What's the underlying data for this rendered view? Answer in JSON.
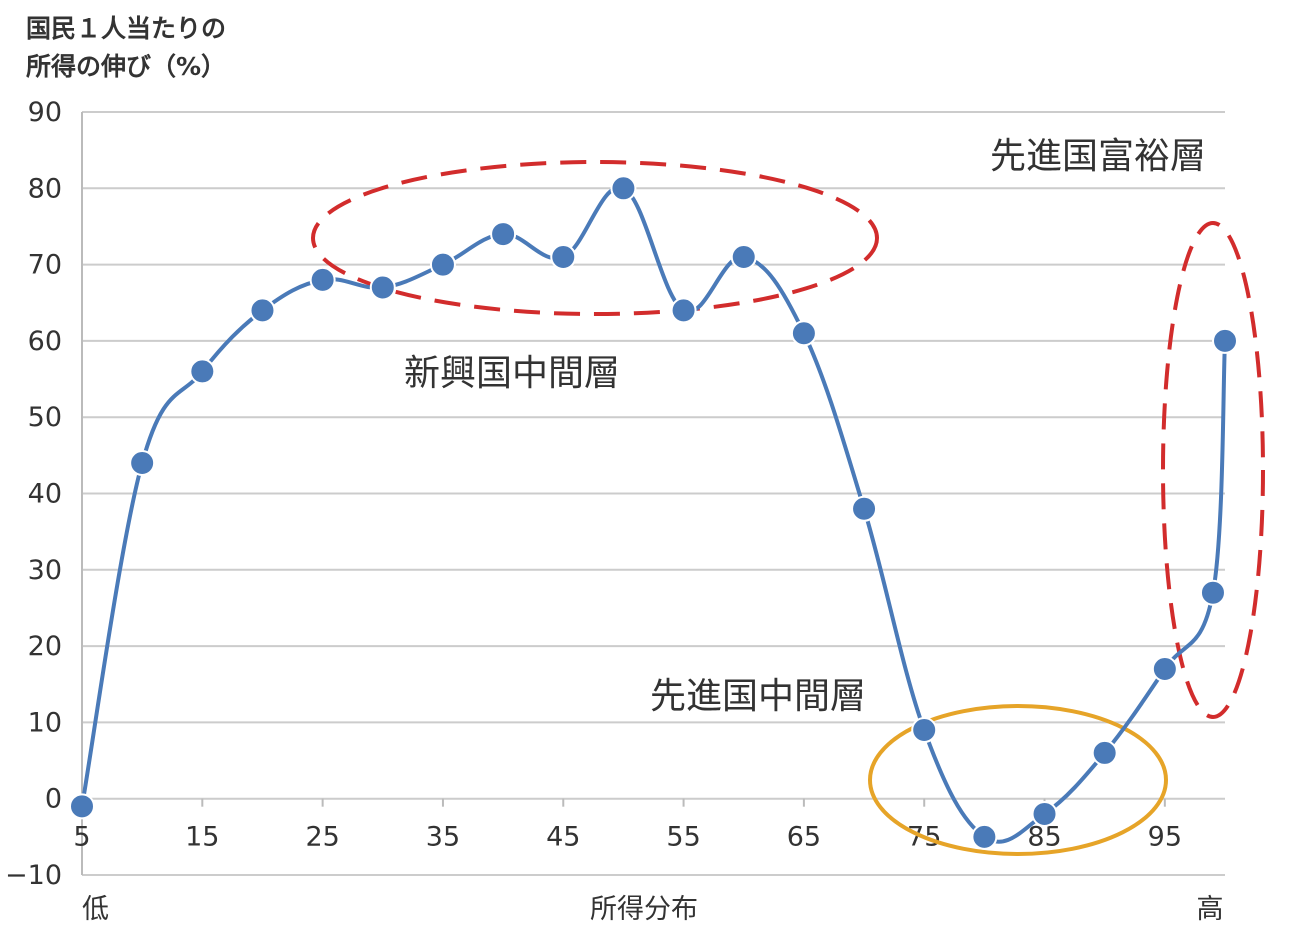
{
  "chart_data": {
    "type": "line",
    "ylabel_lines": [
      "国民１人当たりの",
      "所得の伸び（%）"
    ],
    "xlabel": "所得分布",
    "x_end_labels": {
      "low": "低",
      "high": "高"
    },
    "ylim": [
      -10,
      90
    ],
    "y_ticks": [
      90,
      80,
      70,
      60,
      50,
      40,
      30,
      20,
      10,
      0,
      -10
    ],
    "y_tick_labels": [
      "90",
      "80",
      "70",
      "60",
      "50",
      "40",
      "30",
      "20",
      "10",
      "0",
      "−10"
    ],
    "xlim": [
      5,
      100
    ],
    "x_ticks": [
      5,
      15,
      25,
      35,
      45,
      55,
      65,
      75,
      85,
      95
    ],
    "x_tick_labels": [
      "5",
      "15",
      "25",
      "35",
      "45",
      "55",
      "65",
      "75",
      "85",
      "95"
    ],
    "grid": true,
    "series": [
      {
        "color": "#4a7ab8",
        "x": [
          5,
          10,
          15,
          20,
          25,
          30,
          35,
          40,
          45,
          50,
          55,
          60,
          65,
          70,
          75,
          80,
          85,
          90,
          95,
          99,
          100
        ],
        "values": [
          -1,
          44,
          56,
          64,
          68,
          67,
          70,
          74,
          71,
          80,
          64,
          71,
          61,
          38,
          9,
          -5,
          -2,
          6,
          17,
          27,
          60
        ]
      }
    ],
    "annotations": [
      {
        "id": "emerging",
        "label": "新興国中間層",
        "shape": "dashed-ellipse",
        "color": "#d22c2c"
      },
      {
        "id": "advanced-middle",
        "label": "先進国中間層",
        "shape": "solid-ellipse",
        "color": "#e6a428"
      },
      {
        "id": "advanced-rich",
        "label": "先進国富裕層",
        "shape": "dashed-ellipse",
        "color": "#d22c2c"
      }
    ]
  }
}
